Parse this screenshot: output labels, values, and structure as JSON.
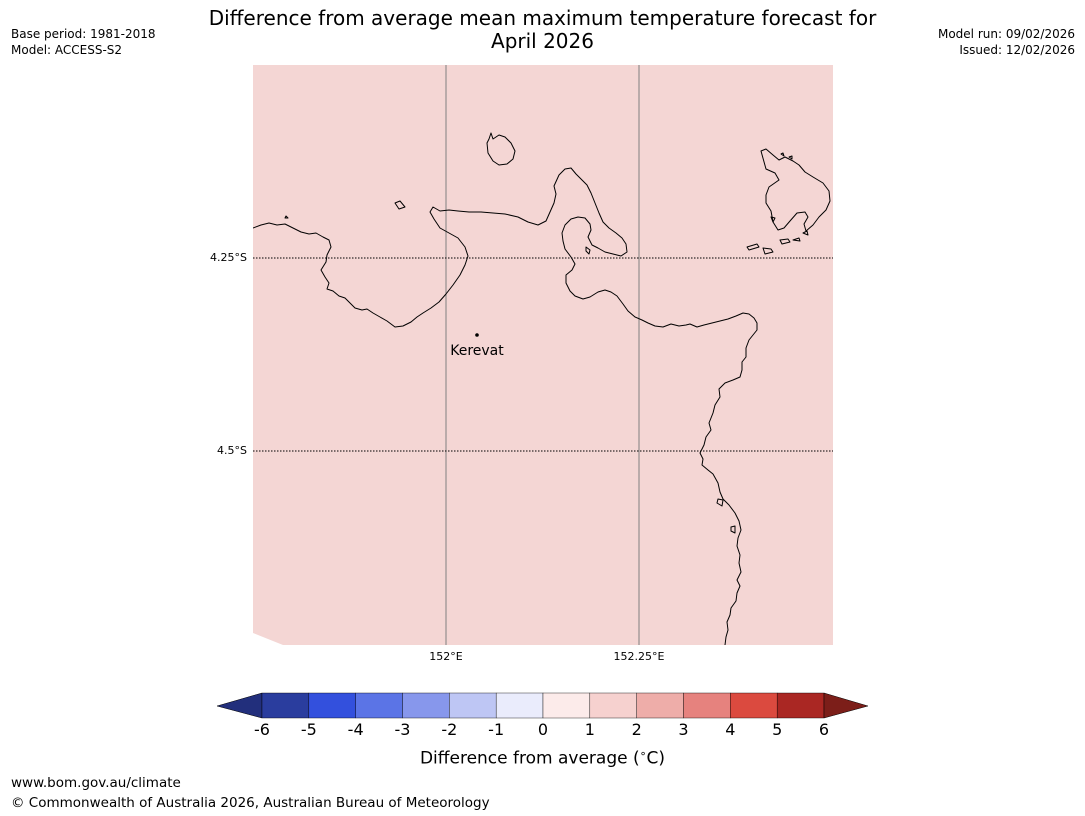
{
  "title_line1": "Difference from average mean maximum temperature forecast for",
  "title_line2": "April 2026",
  "base_period": "Base period: 1981-2018",
  "model": "Model: ACCESS-S2",
  "model_run": "Model run: 09/02/2026",
  "issued": "Issued: 12/02/2026",
  "map": {
    "fill_color": "#f4d6d4",
    "grid_lon_labels": [
      "152°E",
      "152.25°E"
    ],
    "grid_lat_labels": [
      "4.25°S",
      "4.5°S"
    ],
    "place": {
      "name": "Kerevat"
    }
  },
  "colorbar": {
    "ticks": [
      "-6",
      "-5",
      "-4",
      "-3",
      "-2",
      "-1",
      "0",
      "1",
      "2",
      "3",
      "4",
      "5",
      "6"
    ],
    "colors": [
      "#2a3d9e",
      "#3350dd",
      "#5b74e6",
      "#8797ec",
      "#bec6f4",
      "#eaecfc",
      "#fcebea",
      "#f6d1cf",
      "#eeada9",
      "#e6827e",
      "#db4a3f",
      "#aa2723"
    ],
    "low_extend_color": "#222f7c",
    "high_extend_color": "#7c1e19",
    "label": "Difference from average (",
    "label_unit": "C)",
    "degree_symbol": "∘"
  },
  "footer_url": "www.bom.gov.au/climate",
  "footer_copyright": "© Commonwealth of Australia 2026, Australian Bureau of Meteorology"
}
